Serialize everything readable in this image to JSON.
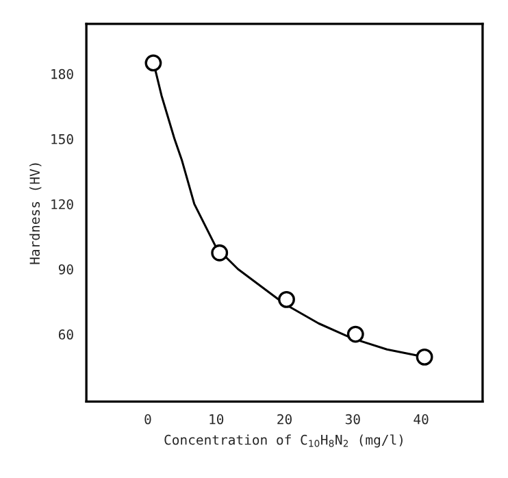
{
  "chart_data": {
    "type": "scatter",
    "xlabel": "Concentration of C$_{10}$H$_{8}$N$_{2}$ (mg/l)",
    "ylabel": "Hardness (HV)",
    "xlim": [
      -9,
      49
    ],
    "ylim": [
      29,
      203
    ],
    "xticks": [
      0,
      10,
      20,
      30,
      40
    ],
    "yticks": [
      60,
      90,
      120,
      150,
      180
    ],
    "grid": false,
    "legend": false,
    "series": [
      {
        "type": "line",
        "color": "#000000",
        "marker": "none",
        "line_style": "solid",
        "x": [
          1,
          2,
          3.9,
          5,
          6.8,
          10,
          13.2,
          20,
          25,
          30,
          35,
          40.5
        ],
        "values": [
          183,
          170,
          150,
          140,
          120,
          100,
          90,
          74,
          65,
          58,
          53,
          49.5
        ]
      },
      {
        "color": "#000000",
        "marker": "circle",
        "x": [
          0.8,
          10.5,
          20.3,
          30.4,
          40.5
        ],
        "values": [
          185,
          97.5,
          76,
          60,
          49.5
        ]
      }
    ]
  }
}
